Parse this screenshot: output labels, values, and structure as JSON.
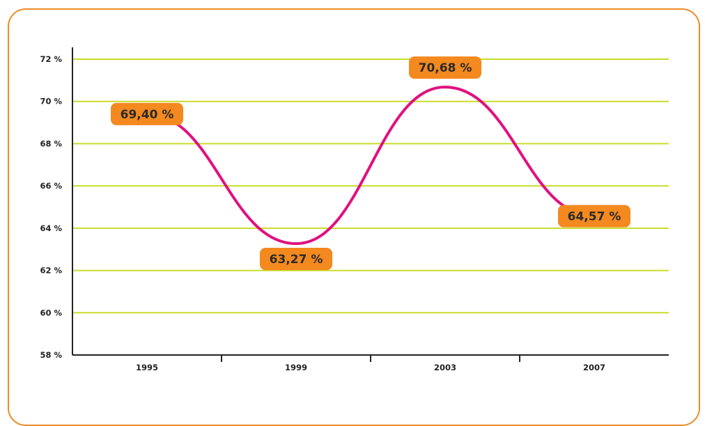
{
  "chart_data": {
    "type": "line",
    "title": "",
    "xlabel": "",
    "ylabel": "",
    "categories": [
      "1995",
      "1999",
      "2003",
      "2007"
    ],
    "series": [
      {
        "values": [
          69.4,
          63.27,
          70.68,
          64.57
        ]
      }
    ],
    "data_labels": [
      "69,40 %",
      "63,27 %",
      "70,68 %",
      "64,57 %"
    ],
    "ylim": [
      58,
      72
    ],
    "y_ticks": [
      {
        "value": 58,
        "label": "58 %"
      },
      {
        "value": 60,
        "label": "60 %"
      },
      {
        "value": 62,
        "label": "62 %"
      },
      {
        "value": 64,
        "label": "64 %"
      },
      {
        "value": 66,
        "label": "66 %"
      },
      {
        "value": 68,
        "label": "68 %"
      },
      {
        "value": 70,
        "label": "70 %"
      },
      {
        "value": 72,
        "label": "72 %"
      }
    ],
    "grid": true,
    "legend": "none",
    "colors": {
      "line": "#e0117f",
      "grid": "#c9dc2a",
      "label_box": "#f3891f",
      "frame": "#ef8a25",
      "axis": "#222222"
    }
  }
}
